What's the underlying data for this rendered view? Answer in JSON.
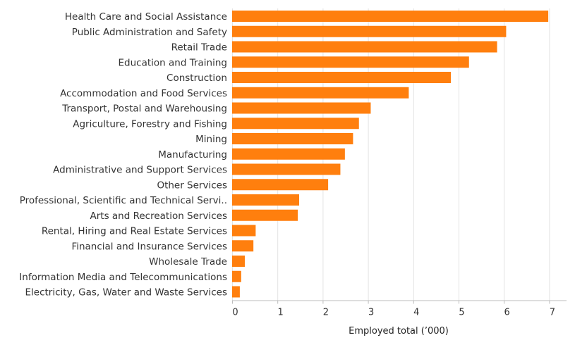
{
  "chart_data": {
    "type": "bar",
    "orientation": "horizontal",
    "xlabel": "Employed total (’000)",
    "ylabel": "",
    "xlim": [
      0,
      7.3
    ],
    "xticks": [
      "0",
      "1",
      "2",
      "3",
      "4",
      "5",
      "6",
      "7"
    ],
    "grid": true,
    "bar_color": "#ff7f0e",
    "categories": [
      "Health Care and Social Assistance",
      "Public Administration and Safety",
      "Retail Trade",
      "Education and Training",
      "Construction",
      "Accommodation and Food Services",
      "Transport, Postal and Warehousing",
      "Agriculture, Forestry and Fishing",
      "Mining",
      "Manufacturing",
      "Administrative and Support Services",
      "Other Services",
      "Professional, Scientific and Technical Servi..",
      "Arts and Recreation Services",
      "Rental, Hiring and Real Estate Services",
      "Financial and Insurance Services",
      "Wholesale Trade",
      "Information Media and Telecommunications",
      "Electricity, Gas, Water and Waste Services"
    ],
    "values": [
      6.98,
      6.05,
      5.85,
      5.23,
      4.83,
      3.9,
      3.06,
      2.8,
      2.67,
      2.49,
      2.39,
      2.12,
      1.48,
      1.45,
      0.52,
      0.47,
      0.28,
      0.2,
      0.17
    ]
  }
}
